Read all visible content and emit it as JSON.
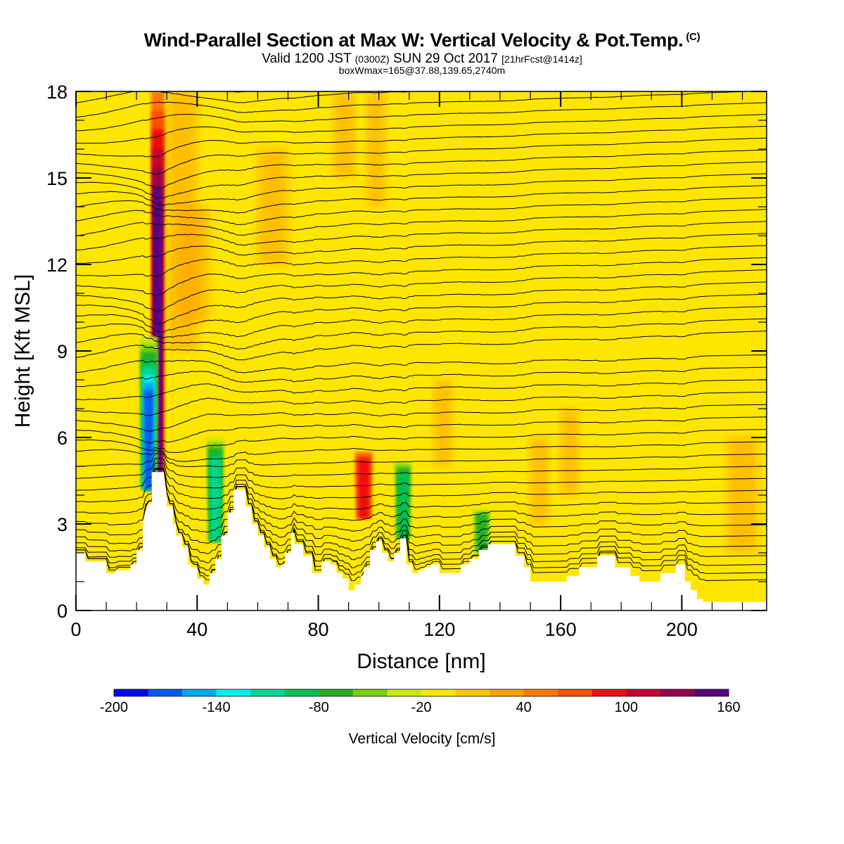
{
  "header": {
    "title": "Wind-Parallel Section at Max W: Vertical Velocity & Pot.Temp.",
    "title_mark": "(C)",
    "valid_prefix": "Valid 1200 JST",
    "valid_utc": "(0300Z)",
    "valid_date": "SUN 29 Oct 2017",
    "forecast": "[21hrFcst@1414z]",
    "boxwmax": "boxWmax=165@37.88,139.65,2740m"
  },
  "colors": {
    "background_field": "#ffe600",
    "terrain": "#ffffff",
    "isentropes": "#000000"
  },
  "chart_data": {
    "type": "heatmap",
    "xlabel": "Distance [nm]",
    "ylabel": "Height [Kft MSL]",
    "xlim": [
      0,
      228
    ],
    "ylim": [
      0,
      18
    ],
    "x_ticks": [
      "0",
      "40",
      "80",
      "120",
      "160",
      "200"
    ],
    "y_ticks": [
      "0",
      "3",
      "6",
      "9",
      "12",
      "15",
      "18"
    ],
    "x_tick_values": [
      0,
      40,
      80,
      120,
      160,
      200
    ],
    "y_tick_values": [
      0,
      3,
      6,
      9,
      12,
      15,
      18
    ],
    "terrain_profile": {
      "x": [
        0,
        3,
        3,
        10,
        10,
        13,
        13,
        18,
        18,
        20,
        20,
        22,
        22,
        23,
        24,
        25,
        25,
        27,
        28,
        29,
        30,
        30,
        32,
        32,
        33,
        33,
        35,
        35,
        37,
        37,
        38,
        38,
        40,
        40,
        42,
        42,
        44,
        44,
        46,
        46,
        48,
        48,
        50,
        50,
        52,
        52,
        56,
        56,
        58,
        58,
        60,
        60,
        62,
        62,
        64,
        64,
        66,
        66,
        68,
        68,
        69,
        69,
        71,
        71,
        72,
        72,
        75,
        75,
        78,
        78,
        81,
        81,
        84,
        84,
        86,
        86,
        88,
        88,
        90,
        90,
        92,
        92,
        94,
        94,
        95,
        95,
        97,
        97,
        99,
        99,
        101,
        101,
        103,
        103,
        105,
        105,
        107,
        107,
        109,
        109,
        111,
        111,
        113,
        113,
        115,
        115,
        117,
        117,
        120,
        120,
        124,
        124,
        127,
        127,
        130,
        130,
        133,
        133,
        136,
        136,
        138,
        138,
        140,
        140,
        145,
        145,
        148,
        148,
        150,
        150,
        156,
        156,
        162,
        162,
        166,
        166,
        172,
        172,
        175,
        175,
        178,
        178,
        183,
        183,
        186,
        186,
        189,
        189,
        193,
        193,
        198,
        198,
        201,
        201,
        203,
        203,
        205,
        205,
        207,
        207,
        228
      ],
      "y": [
        2.0,
        2.0,
        1.7,
        1.7,
        1.3,
        1.3,
        1.4,
        1.4,
        1.6,
        1.6,
        2.1,
        2.1,
        3.0,
        3.5,
        3.7,
        3.7,
        4.8,
        4.8,
        4.8,
        4.8,
        4.0,
        3.6,
        3.6,
        3.0,
        3.0,
        2.6,
        2.6,
        2.2,
        2.2,
        1.6,
        1.6,
        1.5,
        1.5,
        1.1,
        1.1,
        0.9,
        0.9,
        1.3,
        1.3,
        1.8,
        1.8,
        2.6,
        2.6,
        3.4,
        3.4,
        4.2,
        4.2,
        3.6,
        3.6,
        3.0,
        3.0,
        2.6,
        2.6,
        2.2,
        2.2,
        1.8,
        1.8,
        1.5,
        1.5,
        1.6,
        1.6,
        2.0,
        2.0,
        2.7,
        2.7,
        2.3,
        2.3,
        1.9,
        1.9,
        1.3,
        1.3,
        1.7,
        1.7,
        1.6,
        1.6,
        1.3,
        1.3,
        1.1,
        1.1,
        0.7,
        0.7,
        0.9,
        0.9,
        1.2,
        1.2,
        1.5,
        1.5,
        2.1,
        2.1,
        2.4,
        2.4,
        2.0,
        2.0,
        1.7,
        1.7,
        2.0,
        2.0,
        2.5,
        2.5,
        1.6,
        1.6,
        1.3,
        1.3,
        1.4,
        1.4,
        1.5,
        1.5,
        1.6,
        1.6,
        1.3,
        1.3,
        1.3,
        1.3,
        1.6,
        1.6,
        1.8,
        1.8,
        2.1,
        2.1,
        2.3,
        2.3,
        2.3,
        2.3,
        2.3,
        2.3,
        1.9,
        1.9,
        1.5,
        1.5,
        1.0,
        1.0,
        1.0,
        1.0,
        1.2,
        1.2,
        1.5,
        1.5,
        1.9,
        1.9,
        1.9,
        1.9,
        1.5,
        1.5,
        1.2,
        1.2,
        1.0,
        1.0,
        1.0,
        1.0,
        1.3,
        1.3,
        1.6,
        1.6,
        1.0,
        1.0,
        0.7,
        0.7,
        0.4,
        0.4,
        0.3,
        0.3
      ]
    },
    "features": [
      {
        "type": "updraft",
        "x": 27,
        "top": 18,
        "bottom": 4.8,
        "peak": 165
      },
      {
        "type": "downdraft",
        "x": 24,
        "top": 9.5,
        "bottom": 4.2,
        "peak": -190
      },
      {
        "type": "downdraft",
        "x": 46,
        "top": 6.0,
        "bottom": 2.4,
        "peak": -120
      },
      {
        "type": "updraft",
        "x": 95,
        "top": 5.5,
        "bottom": 3.2,
        "peak": 90
      },
      {
        "type": "downdraft",
        "x": 108,
        "top": 5.2,
        "bottom": 2.5,
        "peak": -100
      },
      {
        "type": "downdraft",
        "x": 134,
        "top": 3.5,
        "bottom": 2.0,
        "peak": -80
      }
    ],
    "colorbar": {
      "label": "Vertical Velocity [cm/s]",
      "min": -200,
      "max": 160,
      "step": 20,
      "tick_labels": [
        "-200",
        "-140",
        "-80",
        "-20",
        "40",
        "100",
        "160"
      ],
      "tick_values": [
        -200,
        -140,
        -80,
        -20,
        40,
        100,
        160
      ],
      "colors": [
        "#0a00f5",
        "#005af0",
        "#00aaf0",
        "#00f0f0",
        "#00d890",
        "#00c050",
        "#28b020",
        "#78d010",
        "#c8e810",
        "#ffe600",
        "#ffc800",
        "#ffa000",
        "#ff7800",
        "#ff5000",
        "#f01010",
        "#c80030",
        "#96004b",
        "#5a0082"
      ]
    }
  }
}
